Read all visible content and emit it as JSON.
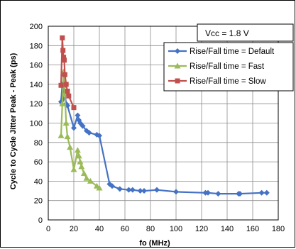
{
  "chart_data": {
    "type": "line",
    "title": "",
    "xlabel": "fo (MHz)",
    "ylabel": "Cycle to Cycle Jitter Peak - Peak (ps)",
    "xlim": [
      0,
      180
    ],
    "ylim": [
      0,
      200
    ],
    "xticks": [
      "0",
      "20",
      "40",
      "60",
      "80",
      "100",
      "120",
      "140",
      "160",
      "180"
    ],
    "yticks": [
      "0",
      "20",
      "40",
      "60",
      "80",
      "100",
      "120",
      "140",
      "160",
      "180",
      "200"
    ],
    "grid": true,
    "legend_position": "top-right",
    "annotation": "Vcc = 1.8 V",
    "series": [
      {
        "name": "Rise/Fall time = Default",
        "color": "#4472C4",
        "marker": "diamond",
        "points": [
          [
            10,
            122
          ],
          [
            11,
            140
          ],
          [
            11.5,
            125
          ],
          [
            12,
            150
          ],
          [
            12.5,
            138
          ],
          [
            13,
            130
          ],
          [
            14,
            120
          ],
          [
            15,
            118
          ],
          [
            20,
            95
          ],
          [
            23,
            108
          ],
          [
            24,
            103
          ],
          [
            25,
            100
          ],
          [
            27,
            97
          ],
          [
            30,
            92
          ],
          [
            32,
            90
          ],
          [
            38,
            88
          ],
          [
            40,
            87
          ],
          [
            48,
            37
          ],
          [
            50,
            35
          ],
          [
            56,
            32
          ],
          [
            63,
            31
          ],
          [
            66,
            31
          ],
          [
            72,
            30
          ],
          [
            75,
            30
          ],
          [
            85,
            31
          ],
          [
            100,
            29
          ],
          [
            123,
            28
          ],
          [
            125,
            28
          ],
          [
            133,
            27
          ],
          [
            149,
            27
          ],
          [
            150,
            27
          ],
          [
            167,
            28
          ],
          [
            171,
            28
          ]
        ]
      },
      {
        "name": "Rise/Fall time = Fast",
        "color": "#9BBB59",
        "marker": "triangle",
        "points": [
          [
            10,
            87
          ],
          [
            11,
            120
          ],
          [
            12,
            153
          ],
          [
            13,
            130
          ],
          [
            14,
            100
          ],
          [
            15,
            86
          ],
          [
            17,
            75
          ],
          [
            20,
            52
          ],
          [
            23,
            72
          ],
          [
            24,
            66
          ],
          [
            25,
            60
          ],
          [
            26,
            55
          ],
          [
            28,
            48
          ],
          [
            30,
            43
          ],
          [
            33,
            40
          ],
          [
            38,
            35
          ],
          [
            40,
            33
          ]
        ]
      },
      {
        "name": "Rise/Fall time = Slow",
        "color": "#C0504D",
        "marker": "square",
        "points": [
          [
            10,
            139
          ],
          [
            11,
            188
          ],
          [
            11.5,
            175
          ],
          [
            12,
            168
          ],
          [
            12.5,
            165
          ],
          [
            13,
            150
          ],
          [
            14,
            140
          ],
          [
            15,
            133
          ],
          [
            16,
            128
          ],
          [
            20,
            116
          ]
        ]
      }
    ]
  }
}
